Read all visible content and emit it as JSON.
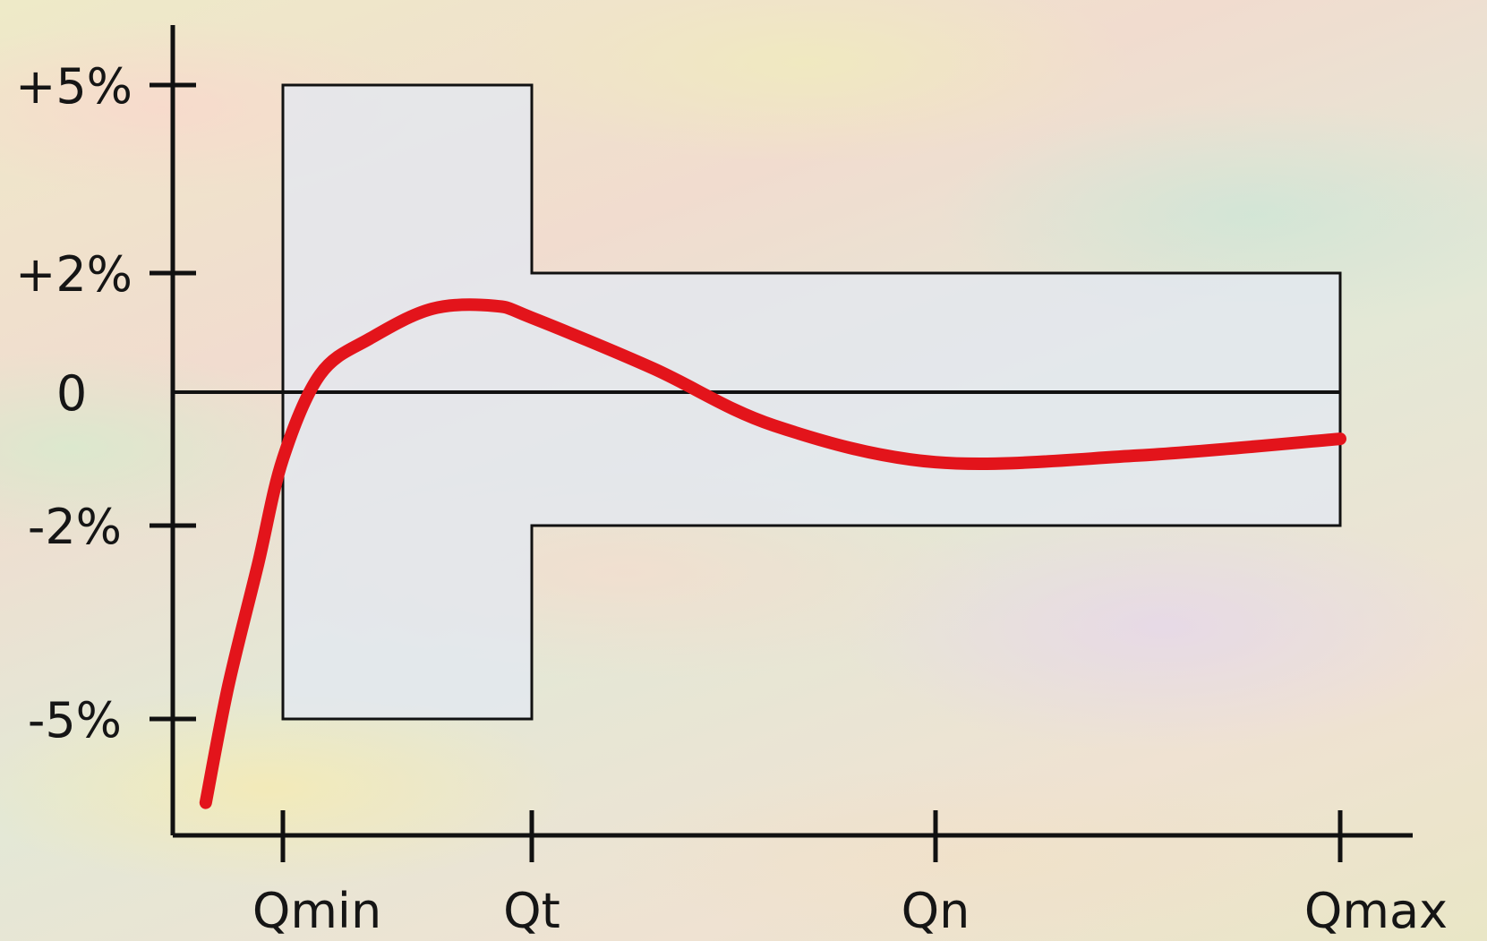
{
  "chart_data": {
    "type": "line",
    "title": "",
    "xlabel": "",
    "ylabel": "",
    "grid": false,
    "legend": "none",
    "x_categories": [
      "Qmin",
      "Qt",
      "Qn",
      "Qmax"
    ],
    "y_tick_labels": [
      "+5%",
      "+2%",
      "0",
      "-2%",
      "-5%"
    ],
    "y_tick_values": [
      5,
      2,
      0,
      -2,
      -5
    ],
    "ylim": [
      -6.4,
      6.2
    ],
    "tolerance_envelope": {
      "upper": [
        {
          "x": "Qmin",
          "y": 5
        },
        {
          "x": "Qt",
          "y": 5
        },
        {
          "x": "Qt",
          "y": 2
        },
        {
          "x": "Qmax",
          "y": 2
        }
      ],
      "lower": [
        {
          "x": "Qmin",
          "y": -5
        },
        {
          "x": "Qt",
          "y": -5
        },
        {
          "x": "Qt",
          "y": -2
        },
        {
          "x": "Qmax",
          "y": -2
        }
      ]
    },
    "series": [
      {
        "color": "#e3141b",
        "x": [
          0.69,
          0.78,
          0.9,
          1.0,
          1.15,
          1.35,
          1.6,
          1.85,
          2.0,
          2.3,
          2.6,
          3.0,
          3.5,
          4.0
        ],
        "y": [
          -6.3,
          -4.5,
          -2.6,
          -1.0,
          0.3,
          0.9,
          1.4,
          1.45,
          1.25,
          0.4,
          -0.5,
          -1.05,
          -0.95,
          -0.7
        ]
      }
    ],
    "colors": {
      "curve": "#e3141b",
      "envelope_fill": "#e3e8f1",
      "axis": "#111111"
    }
  }
}
